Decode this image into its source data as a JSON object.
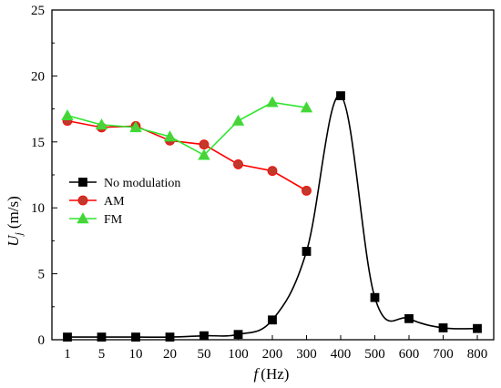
{
  "chart_data": {
    "type": "line",
    "categories": [
      "1",
      "5",
      "10",
      "20",
      "50",
      "100",
      "200",
      "300",
      "400",
      "500",
      "600",
      "700",
      "800"
    ],
    "xlabel_symbol": "f",
    "xlabel_unit": "(Hz)",
    "ylabel_symbol": "U",
    "ylabel_subscript": "j",
    "ylabel_unit": "(m/s)",
    "ylim": [
      0,
      25
    ],
    "yticks": [
      "0",
      "5",
      "10",
      "15",
      "20",
      "25"
    ],
    "legend_position": "left",
    "grid": false,
    "series": [
      {
        "name": "No modulation",
        "color": "#000000",
        "marker": "square",
        "values": [
          0.2,
          0.2,
          0.2,
          0.2,
          0.3,
          0.4,
          1.5,
          6.7,
          18.5,
          3.2,
          1.6,
          0.9,
          0.85
        ]
      },
      {
        "name": "AM",
        "color": "#ff0000",
        "marker_fill": "#c0392b",
        "marker": "circle",
        "values": [
          16.6,
          16.1,
          16.2,
          15.1,
          14.8,
          13.3,
          12.8,
          11.3,
          null,
          null,
          null,
          null,
          null
        ]
      },
      {
        "name": "FM",
        "color": "#2ee62e",
        "marker_fill": "#4cd13b",
        "marker": "triangle",
        "values": [
          17.0,
          16.3,
          16.1,
          15.4,
          14.0,
          16.6,
          18.0,
          17.6,
          null,
          null,
          null,
          null,
          null
        ]
      }
    ]
  }
}
